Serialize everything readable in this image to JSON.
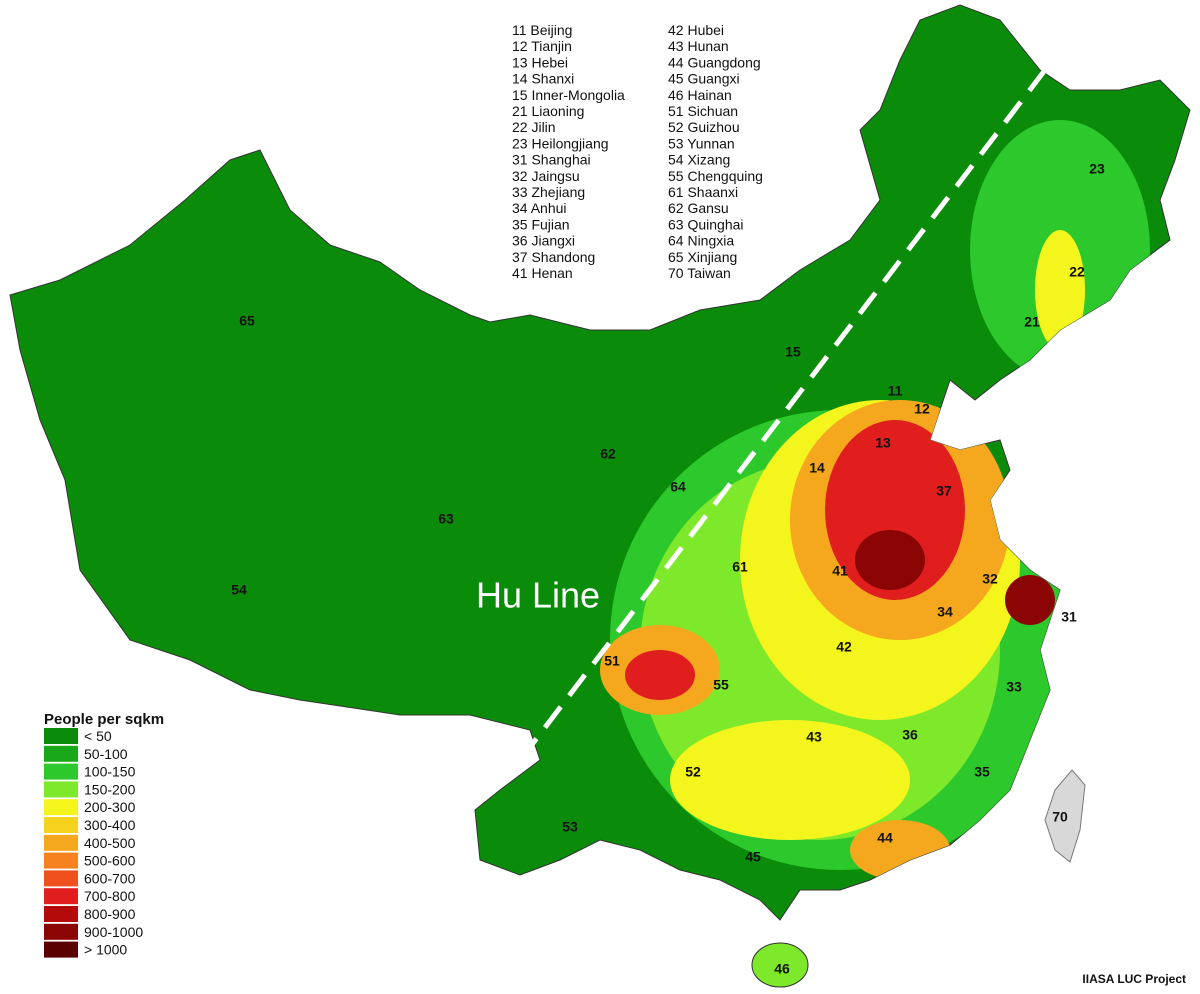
{
  "province_key": {
    "column_1": [
      "11 Beijing",
      "12 Tianjin",
      "13 Hebei",
      "14 Shanxi",
      "15 Inner-Mongolia",
      "21 Liaoning",
      "22 Jilin",
      "23 Heilongjiang",
      "31 Shanghai",
      "32 Jaingsu",
      "33 Zhejiang",
      "34 Anhui",
      "35 Fujian",
      "36 Jiangxi",
      "37 Shandong",
      "41 Henan"
    ],
    "column_2": [
      "42 Hubei",
      "43 Hunan",
      "44 Guangdong",
      "45 Guangxi",
      "46 Hainan",
      "51 Sichuan",
      "52 Guizhou",
      "53 Yunnan",
      "54 Xizang",
      "55 Chengquing",
      "61 Shaanxi",
      "62 Gansu",
      "63 Quinghai",
      "64 Ningxia",
      "65 Xinjiang",
      "70 Taiwan"
    ]
  },
  "map_labels": [
    "65",
    "15",
    "23",
    "22",
    "21",
    "11",
    "12",
    "13",
    "14",
    "37",
    "62",
    "64",
    "63",
    "54",
    "61",
    "41",
    "32",
    "31",
    "34",
    "51",
    "55",
    "42",
    "33",
    "43",
    "36",
    "52",
    "35",
    "53",
    "70",
    "44",
    "45",
    "46"
  ],
  "hu_line_label": "Hu Line",
  "legend": {
    "title": "People per sqkm",
    "items": [
      {
        "label": "< 50",
        "color": "#0a8c0a"
      },
      {
        "label": "50-100",
        "color": "#18a818"
      },
      {
        "label": "100-150",
        "color": "#2cc82c"
      },
      {
        "label": "150-200",
        "color": "#7ee82a"
      },
      {
        "label": "200-300",
        "color": "#f5f51e"
      },
      {
        "label": "300-400",
        "color": "#f5d21e"
      },
      {
        "label": "400-500",
        "color": "#f5a81e"
      },
      {
        "label": "500-600",
        "color": "#f5821e"
      },
      {
        "label": "600-700",
        "color": "#f0501e"
      },
      {
        "label": "700-800",
        "color": "#e01e1e"
      },
      {
        "label": "800-900",
        "color": "#b40a0a"
      },
      {
        "label": "900-1000",
        "color": "#8c0505"
      },
      {
        "label": "> 1000",
        "color": "#5a0000"
      }
    ]
  },
  "credit": "IIASA LUC Project"
}
